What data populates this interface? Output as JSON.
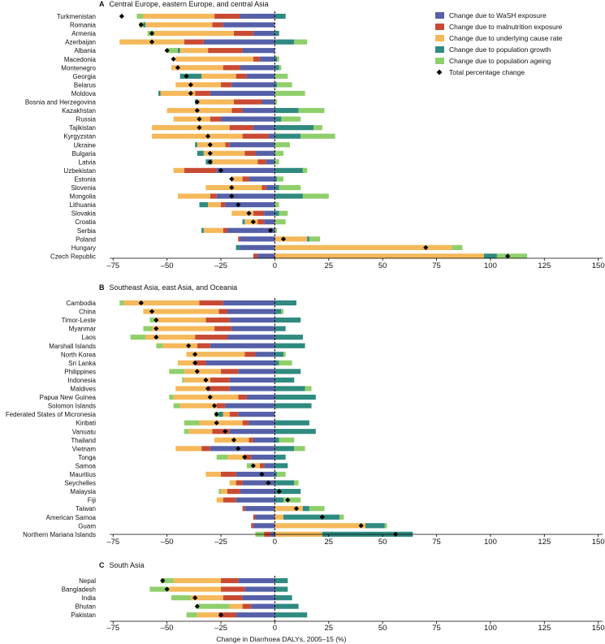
{
  "chart_data": {
    "type": "bar",
    "subtype": "diverging stacked horizontal bar",
    "xlabel": "Change in Diarrhoea DALYs, 2005–15 (%)",
    "xlim": [
      -80,
      152
    ],
    "xticks": [
      -75,
      -50,
      -25,
      0,
      25,
      50,
      75,
      100,
      125,
      150
    ],
    "tick_labels": [
      "–75",
      "–50",
      "–25",
      "0",
      "25",
      "50",
      "75",
      "100",
      "125",
      "150"
    ],
    "colors": {
      "wash": "#5560a8",
      "malnutrition": "#c94a33",
      "cause": "#f5b85a",
      "growth": "#2f8a80",
      "ageing": "#8fcf6b",
      "total": "#000000"
    },
    "legend": [
      {
        "key": "wash",
        "label": "Change due to WaSH exposure"
      },
      {
        "key": "malnutrition",
        "label": "Change due to malnutrition exposure"
      },
      {
        "key": "cause",
        "label": "Change due to underlying cause rate"
      },
      {
        "key": "growth",
        "label": "Change due to population growth"
      },
      {
        "key": "ageing",
        "label": "Change due to population ageing"
      },
      {
        "key": "total",
        "label": "Total percentage change"
      }
    ],
    "legend_position": "top-right",
    "components_order": [
      "wash",
      "malnutrition",
      "cause",
      "growth",
      "ageing"
    ],
    "panels": [
      {
        "letter": "A",
        "title": "Central Europe, eastern Europe, and central Asia",
        "rows": [
          {
            "name": "Turkmenistan",
            "wash": -16,
            "malnutrition": -12,
            "cause": -33,
            "growth": 5,
            "ageing": -3,
            "total": -71
          },
          {
            "name": "Romania",
            "wash": -24,
            "malnutrition": -5,
            "cause": -31,
            "growth": -1,
            "ageing": -2,
            "total": -62
          },
          {
            "name": "Armenia",
            "wash": -10,
            "malnutrition": -9,
            "cause": -37,
            "growth": 2,
            "ageing": -3,
            "total": -57
          },
          {
            "name": "Azerbaijan",
            "wash": -33,
            "malnutrition": -9,
            "cause": -30,
            "growth": 9,
            "ageing": 6,
            "total": -57
          },
          {
            "name": "Albania",
            "wash": -15,
            "malnutrition": -16,
            "cause": -13,
            "growth": -1,
            "ageing": -5,
            "total": -50
          },
          {
            "name": "Macedonia",
            "wash": -7,
            "malnutrition": -3,
            "cause": -36,
            "growth": 1,
            "ageing": 1,
            "total": -47
          },
          {
            "name": "Montenegro",
            "wash": -16,
            "malnutrition": -8,
            "cause": -24,
            "growth": 2,
            "ageing": 1,
            "total": -45
          },
          {
            "name": "Georgia",
            "wash": -13,
            "malnutrition": -5,
            "cause": -16,
            "growth": -10,
            "ageing": 6,
            "total": -41
          },
          {
            "name": "Belarus",
            "wash": -20,
            "malnutrition": -5,
            "cause": -21,
            "growth": 1,
            "ageing": 7,
            "total": -39
          },
          {
            "name": "Moldova",
            "wash": -30,
            "malnutrition": -7,
            "cause": -16,
            "growth": -1,
            "ageing": 14,
            "total": -39
          },
          {
            "name": "Bosnia and Herzegovina",
            "wash": -6,
            "malnutrition": -13,
            "cause": -17,
            "growth": -1,
            "ageing": 1,
            "total": -36
          },
          {
            "name": "Kazakhstan",
            "wash": -15,
            "malnutrition": -5,
            "cause": -30,
            "growth": 11,
            "ageing": 12,
            "total": -36
          },
          {
            "name": "Russia",
            "wash": -25,
            "malnutrition": -5,
            "cause": -17,
            "growth": 3,
            "ageing": 9,
            "total": -35
          },
          {
            "name": "Tajikistan",
            "wash": -10,
            "malnutrition": -11,
            "cause": -36,
            "growth": 18,
            "ageing": 4,
            "total": -35
          },
          {
            "name": "Kyrgyzstan",
            "wash": -3,
            "malnutrition": -12,
            "cause": -42,
            "growth": 12,
            "ageing": 16,
            "total": -31
          },
          {
            "name": "Ukraine",
            "wash": -21,
            "malnutrition": -2,
            "cause": -13,
            "growth": -1,
            "ageing": 7,
            "total": -30
          },
          {
            "name": "Bulgaria",
            "wash": -9,
            "malnutrition": -5,
            "cause": -19,
            "growth": -3,
            "ageing": 4,
            "total": -30
          },
          {
            "name": "Latvia",
            "wash": -4,
            "malnutrition": -4,
            "cause": -21,
            "growth": -3,
            "ageing": 2,
            "total": -30
          },
          {
            "name": "Uzbekistan",
            "wash": -27,
            "malnutrition": -15,
            "cause": -5,
            "growth": 13,
            "ageing": 2,
            "total": -25
          },
          {
            "name": "Estonia",
            "wash": -12,
            "malnutrition": -3,
            "cause": -5,
            "growth": 1,
            "ageing": 3,
            "total": -20
          },
          {
            "name": "Slovenia",
            "wash": -4,
            "malnutrition": -2,
            "cause": -26,
            "growth": 2,
            "ageing": 10,
            "total": -20
          },
          {
            "name": "Mongolia",
            "wash": -27,
            "malnutrition": -3,
            "cause": -15,
            "growth": 13,
            "ageing": 12,
            "total": -20
          },
          {
            "name": "Lithuania",
            "wash": -23,
            "malnutrition": -2,
            "cause": -6,
            "growth": -4,
            "ageing": 2,
            "total": -17
          },
          {
            "name": "Slovakia",
            "wash": -5,
            "malnutrition": -5,
            "cause": -10,
            "growth": 2,
            "ageing": 4,
            "total": -12
          },
          {
            "name": "Croatia",
            "wash": -5,
            "malnutrition": -3,
            "cause": -6,
            "growth": -1,
            "ageing": 5,
            "total": -10
          },
          {
            "name": "Serbia",
            "wash": -22,
            "malnutrition": -2,
            "cause": -9,
            "growth": -1,
            "ageing": 1,
            "total": -2
          },
          {
            "name": "Poland",
            "wash": -16,
            "malnutrition": -1,
            "cause": 15,
            "growth": 1,
            "ageing": 5,
            "total": 4
          },
          {
            "name": "Hungary",
            "wash": -16,
            "malnutrition": 0,
            "cause": 82,
            "growth": -2,
            "ageing": 5,
            "total": 70
          },
          {
            "name": "Czech Republic",
            "wash": -8,
            "malnutrition": -2,
            "cause": 97,
            "growth": 6,
            "ageing": 14,
            "total": 108
          }
        ]
      },
      {
        "letter": "B",
        "title": "Southeast Asia, east Asia, and Oceania",
        "rows": [
          {
            "name": "Cambodia",
            "wash": -24,
            "malnutrition": -11,
            "cause": -35,
            "growth": 10,
            "ageing": -2,
            "total": -62
          },
          {
            "name": "China",
            "wash": -22,
            "malnutrition": -4,
            "cause": -35,
            "growth": 3,
            "ageing": 1,
            "total": -57
          },
          {
            "name": "Timor-Leste",
            "wash": -21,
            "malnutrition": -11,
            "cause": -23,
            "growth": 12,
            "ageing": -3,
            "total": -55
          },
          {
            "name": "Myanmar",
            "wash": -20,
            "malnutrition": -8,
            "cause": -29,
            "growth": 5,
            "ageing": -4,
            "total": -55
          },
          {
            "name": "Laos",
            "wash": -22,
            "malnutrition": -15,
            "cause": -23,
            "growth": 13,
            "ageing": -7,
            "total": -55
          },
          {
            "name": "Marshall Islands",
            "wash": -30,
            "malnutrition": -6,
            "cause": -16,
            "growth": 14,
            "ageing": -3,
            "total": -40
          },
          {
            "name": "North Korea",
            "wash": -9,
            "malnutrition": -5,
            "cause": -27,
            "growth": 4,
            "ageing": 1,
            "total": -37
          },
          {
            "name": "Sri Lanka",
            "wash": -32,
            "malnutrition": -5,
            "cause": -8,
            "growth": 2,
            "ageing": 6,
            "total": -37
          },
          {
            "name": "Philippines",
            "wash": -17,
            "malnutrition": -8,
            "cause": -17,
            "growth": 12,
            "ageing": -7,
            "total": -36
          },
          {
            "name": "Indonesia",
            "wash": -21,
            "malnutrition": -9,
            "cause": -12,
            "growth": 9,
            "ageing": -1,
            "total": -32
          },
          {
            "name": "Maldives",
            "wash": -21,
            "malnutrition": -10,
            "cause": -15,
            "growth": 14,
            "ageing": 3,
            "total": -31
          },
          {
            "name": "Papua New Guinea",
            "wash": -13,
            "malnutrition": -4,
            "cause": -30,
            "growth": 19,
            "ageing": -2,
            "total": -30
          },
          {
            "name": "Solomon Islands",
            "wash": -23,
            "malnutrition": -4,
            "cause": -17,
            "growth": 17,
            "ageing": -3,
            "total": -28
          },
          {
            "name": "Federated States of Micronesia",
            "wash": -17,
            "malnutrition": -4,
            "cause": -3,
            "growth": -2,
            "ageing": -2,
            "total": -27
          },
          {
            "name": "Kiribati",
            "wash": -12,
            "malnutrition": -3,
            "cause": -20,
            "growth": 16,
            "ageing": -7,
            "total": -27
          },
          {
            "name": "Vanuatu",
            "wash": -21,
            "malnutrition": -8,
            "cause": -11,
            "growth": 19,
            "ageing": -2,
            "total": -23
          },
          {
            "name": "Thailand",
            "wash": -10,
            "malnutrition": -2,
            "cause": -16,
            "growth": 2,
            "ageing": 7,
            "total": -19
          },
          {
            "name": "Vietnam",
            "wash": -30,
            "malnutrition": -4,
            "cause": -12,
            "growth": 9,
            "ageing": 5,
            "total": -17
          },
          {
            "name": "Tonga",
            "wash": -11,
            "malnutrition": -3,
            "cause": -8,
            "growth": 5,
            "ageing": -5,
            "total": -14
          },
          {
            "name": "Samoa",
            "wash": -5,
            "malnutrition": -2,
            "cause": -3,
            "growth": 6,
            "ageing": -3,
            "total": -10
          },
          {
            "name": "Mauritius",
            "wash": -18,
            "malnutrition": -7,
            "cause": -7,
            "growth": 1,
            "ageing": 4,
            "total": -6
          },
          {
            "name": "Seychelles",
            "wash": -15,
            "malnutrition": -3,
            "cause": -3,
            "growth": 9,
            "ageing": 2,
            "total": -3
          },
          {
            "name": "Malaysia",
            "wash": -16,
            "malnutrition": -6,
            "cause": -3,
            "growth": 12,
            "ageing": -1,
            "total": 2
          },
          {
            "name": "Fiji",
            "wash": -18,
            "malnutrition": -6,
            "cause": -3,
            "growth": 4,
            "ageing": 8,
            "total": 6
          },
          {
            "name": "Taiwan",
            "wash": -14,
            "malnutrition": -1,
            "cause": 13,
            "growth": 3,
            "ageing": 7,
            "total": 10
          },
          {
            "name": "American Samoa",
            "wash": -9,
            "malnutrition": -1,
            "cause": 4,
            "growth": 26,
            "ageing": 2,
            "total": 22
          },
          {
            "name": "Guam",
            "wash": -10,
            "malnutrition": -1,
            "cause": 42,
            "growth": 9,
            "ageing": 1,
            "total": 40
          },
          {
            "name": "Northern Mariana Islands",
            "wash": -2,
            "malnutrition": -3,
            "cause": 22,
            "growth": 42,
            "ageing": -4,
            "total": 56
          }
        ]
      },
      {
        "letter": "C",
        "title": "South Asia",
        "rows": [
          {
            "name": "Nepal",
            "wash": -17,
            "malnutrition": -8,
            "cause": -22,
            "growth": 6,
            "ageing": -6,
            "total": -52
          },
          {
            "name": "Bangladesh",
            "wash": -14,
            "malnutrition": -11,
            "cause": -24,
            "growth": 6,
            "ageing": -9,
            "total": -50
          },
          {
            "name": "India",
            "wash": -15,
            "malnutrition": -9,
            "cause": -15,
            "growth": 8,
            "ageing": -9,
            "total": -37
          },
          {
            "name": "Bhutan",
            "wash": -11,
            "malnutrition": -4,
            "cause": -6,
            "growth": 11,
            "ageing": -15,
            "total": -36
          },
          {
            "name": "Pakistan",
            "wash": -18,
            "malnutrition": -8,
            "cause": -10,
            "growth": 15,
            "ageing": -5,
            "total": -25
          }
        ]
      }
    ]
  }
}
